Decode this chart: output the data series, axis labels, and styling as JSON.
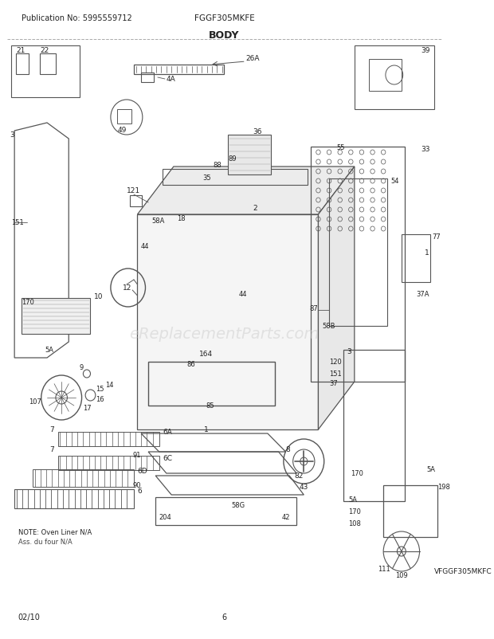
{
  "title": "BODY",
  "model": "FGGF305MKFE",
  "publication": "Publication No: 5995559712",
  "page": "6",
  "date": "02/10",
  "alt_model": "VFGGF305MKFC",
  "note": "NOTE: Oven Liner N/A\nAss. du four N/A",
  "bg_color": "#ffffff",
  "line_color": "#555555",
  "text_color": "#222222",
  "watermark": "eReplacementParts.com",
  "watermark_color": "#cccccc",
  "watermark_alpha": 0.5,
  "fig_width": 6.2,
  "fig_height": 8.03,
  "dpi": 100
}
